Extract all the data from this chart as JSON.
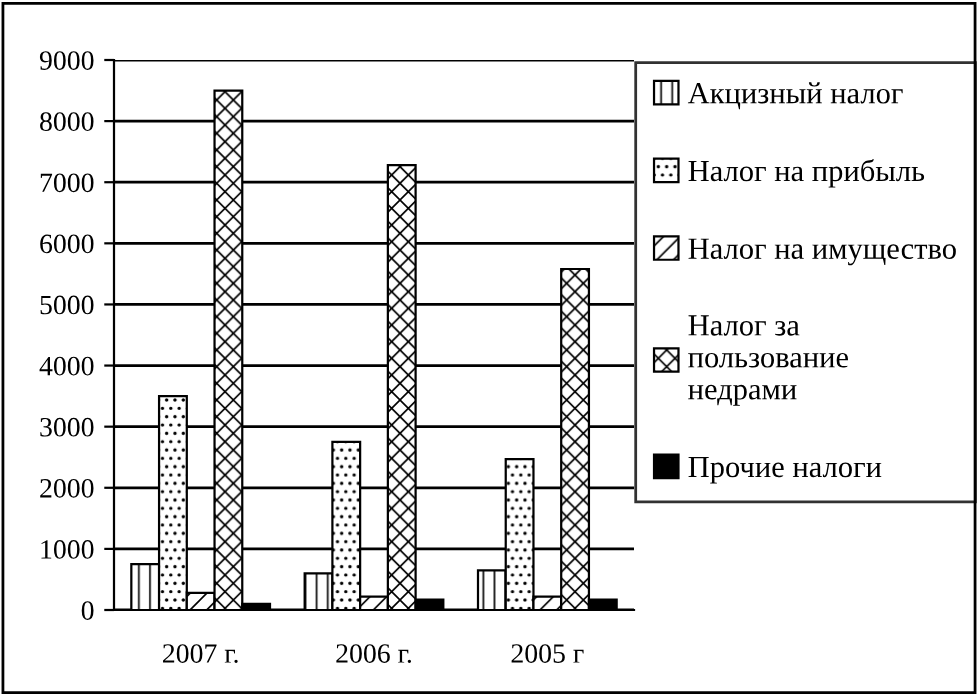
{
  "chart_data": {
    "type": "bar",
    "categories": [
      "2007 г.",
      "2006 г.",
      "2005 г"
    ],
    "series": [
      {
        "name": "Акцизный налог",
        "color": "#000000",
        "values": [
          750,
          600,
          650
        ]
      },
      {
        "name": "Налог на прибыль",
        "color": "#000000",
        "values": [
          3500,
          2750,
          2470
        ]
      },
      {
        "name": "Налог на имущество",
        "color": "#000000",
        "values": [
          280,
          220,
          220
        ]
      },
      {
        "name": "Налог за\nпользование\nнедрами",
        "color": "#000000",
        "values": [
          8500,
          7280,
          5580
        ]
      },
      {
        "name": "Прочие налоги",
        "color": "#000000",
        "values": [
          100,
          170,
          170
        ]
      }
    ],
    "ylim": [
      0,
      9000
    ],
    "yticks": [
      0,
      1000,
      2000,
      3000,
      4000,
      5000,
      6000,
      7000,
      8000,
      9000
    ],
    "grid": "y",
    "legend": "right"
  }
}
